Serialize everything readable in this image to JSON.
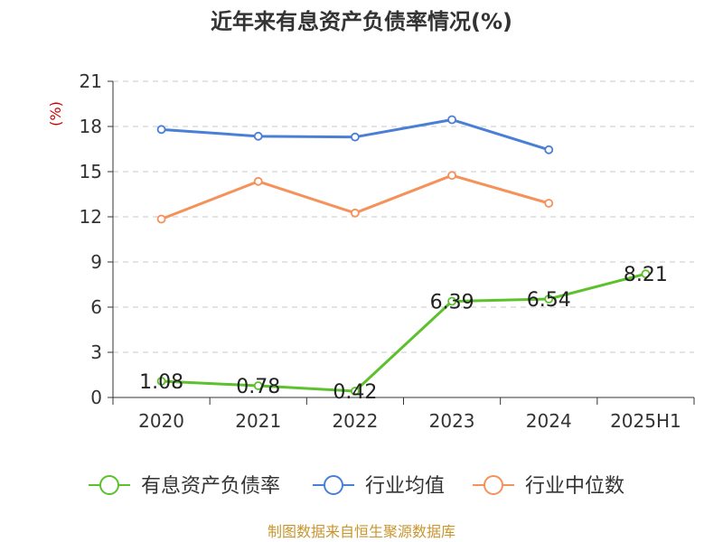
{
  "title": "近年来有息资产负债率情况(%)",
  "source": "制图数据来自恒生聚源数据库",
  "chart_data": {
    "type": "line",
    "unit": "(%)",
    "categories": [
      "2020",
      "2021",
      "2022",
      "2023",
      "2024",
      "2025H1"
    ],
    "ylim": [
      0,
      21
    ],
    "yticks": [
      0,
      3,
      6,
      9,
      12,
      15,
      18,
      21
    ],
    "grid": true,
    "legend_position": "bottom",
    "series": [
      {
        "name": "有息资产负债率",
        "color": "#5cc12d",
        "values": [
          1.08,
          0.78,
          0.42,
          6.39,
          6.54,
          8.21
        ],
        "labels": [
          "1.08",
          "0.78",
          "0.42",
          "6.39",
          "6.54",
          "8.21"
        ]
      },
      {
        "name": "行业均值",
        "color": "#4a7fd6",
        "values": [
          17.8,
          17.35,
          17.3,
          18.45,
          16.45,
          null
        ]
      },
      {
        "name": "行业中位数",
        "color": "#f5915a",
        "values": [
          11.85,
          14.35,
          12.25,
          14.75,
          12.9,
          null
        ]
      }
    ]
  }
}
